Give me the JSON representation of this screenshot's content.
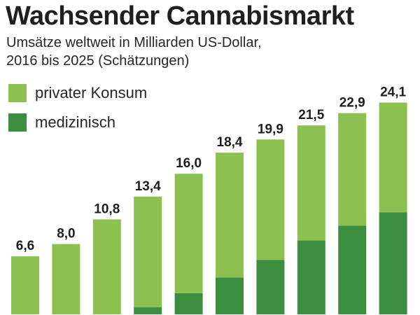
{
  "chart_data": {
    "type": "bar",
    "stacked": true,
    "title": "Wachsender Cannabismarkt",
    "subtitle_line1": "Umsätze weltweit in Milliarden US-Dollar,",
    "subtitle_line2": "2016 bis 2025 (Schätzungen)",
    "totals": [
      6.6,
      8.0,
      10.8,
      13.4,
      16.0,
      18.4,
      19.9,
      21.5,
      22.9,
      24.1
    ],
    "value_labels": [
      "6,6",
      "8,0",
      "10,8",
      "13,4",
      "16,0",
      "18,4",
      "19,9",
      "21,5",
      "22,9",
      "24,1"
    ],
    "series": [
      {
        "name": "medizinisch",
        "values": [
          0,
          0,
          0,
          0.8,
          2.4,
          4.2,
          6.2,
          8.4,
          10.1,
          11.6
        ]
      },
      {
        "name": "privater Konsum",
        "values": [
          6.6,
          8.0,
          10.8,
          12.6,
          13.6,
          14.2,
          13.7,
          13.1,
          12.8,
          12.5
        ]
      }
    ],
    "colors": {
      "privater Konsum": "#8cc152",
      "medizinisch": "#3c8d3f"
    },
    "legend": [
      {
        "label": "privater Konsum",
        "color": "#8cc152"
      },
      {
        "label": "medizinisch",
        "color": "#3c8d3f"
      }
    ],
    "legend_position": "top-left",
    "grid": false
  }
}
